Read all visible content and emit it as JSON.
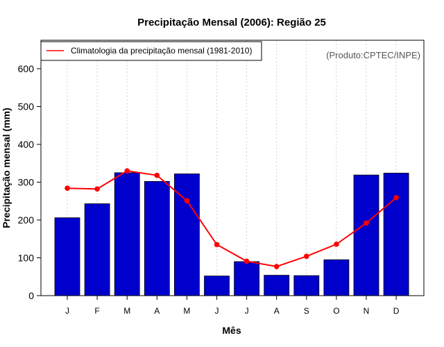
{
  "chart_data": {
    "type": "bar",
    "title": "Precipitação Mensal (2006): Região 25",
    "xlabel": "Mês",
    "ylabel": "Precipitação mensal (mm)",
    "ylim": [
      0,
      650
    ],
    "yticks": [
      0,
      100,
      200,
      300,
      400,
      500,
      600
    ],
    "categories": [
      "J",
      "F",
      "M",
      "A",
      "M",
      "J",
      "J",
      "A",
      "S",
      "O",
      "N",
      "D"
    ],
    "series": [
      {
        "name": "Precipitação mensal 2006",
        "type": "bar",
        "color": "#0000cc",
        "values": [
          206,
          243,
          325,
          302,
          322,
          52,
          90,
          54,
          53,
          95,
          319,
          324
        ]
      },
      {
        "name": "Climatologia da precipitação mensal (1981-2010)",
        "type": "line",
        "color": "#ff0000",
        "values": [
          284,
          282,
          330,
          318,
          251,
          135,
          91,
          77,
          104,
          136,
          192,
          259
        ]
      }
    ],
    "legend": {
      "position": "top-left",
      "entries": [
        "Climatologia da precipitação mensal (1981-2010)"
      ]
    },
    "annotation": "(Produto:CPTEC/INPE)",
    "grid": "vertical dotted"
  }
}
